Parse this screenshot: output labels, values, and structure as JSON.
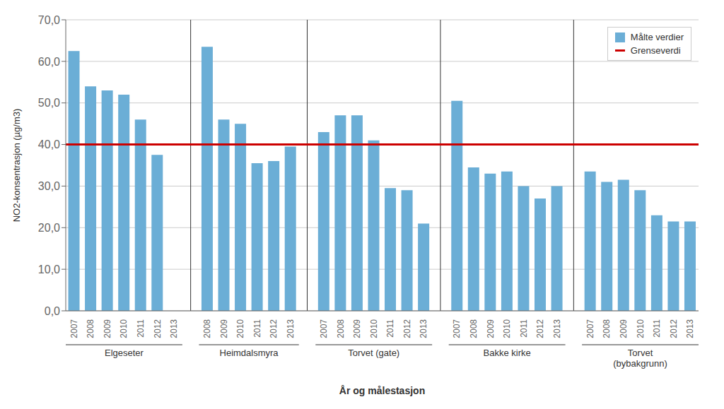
{
  "chart_data": {
    "type": "bar",
    "xlabel": "År og målestasjon",
    "ylabel": "NO2-konsentrasjon (µg/m3)",
    "groups": [
      {
        "name": "Elgeseter",
        "categories": [
          "2007",
          "2008",
          "2009",
          "2010",
          "2011",
          "2012",
          "2013"
        ],
        "values": [
          62.5,
          54.0,
          53.0,
          52.0,
          46.0,
          37.5,
          null
        ]
      },
      {
        "name": "Heimdalsmyra",
        "categories": [
          "2008",
          "2009",
          "2010",
          "2011",
          "2012",
          "2013"
        ],
        "values": [
          63.5,
          46.0,
          45.0,
          35.5,
          36.0,
          39.5
        ]
      },
      {
        "name": "Torvet (gate)",
        "categories": [
          "2007",
          "2008",
          "2009",
          "2010",
          "2011",
          "2012",
          "2013"
        ],
        "values": [
          43.0,
          47.0,
          47.0,
          41.0,
          29.5,
          29.0,
          21.0
        ]
      },
      {
        "name": "Bakke kirke",
        "categories": [
          "2007",
          "2008",
          "2009",
          "2010",
          "2011",
          "2012",
          "2013"
        ],
        "values": [
          50.5,
          34.5,
          33.0,
          33.5,
          30.0,
          27.0,
          30.0
        ]
      },
      {
        "name": "Torvet\n(bybakgrunn)",
        "categories": [
          "2007",
          "2008",
          "2009",
          "2010",
          "2011",
          "2012",
          "2013"
        ],
        "values": [
          33.5,
          31.0,
          31.5,
          29.0,
          23.0,
          21.5,
          21.5
        ]
      }
    ],
    "bar_series": {
      "name": "Målte verdier",
      "color": "#6baed6"
    },
    "reference_line": {
      "name": "Grenseverdi",
      "value": 40.0,
      "color": "#cc0000"
    },
    "ylim": [
      0,
      70
    ],
    "yticks": [
      {
        "value": 0,
        "label": "0,0"
      },
      {
        "value": 10,
        "label": "10,0"
      },
      {
        "value": 20,
        "label": "20,0"
      },
      {
        "value": 30,
        "label": "30,0"
      },
      {
        "value": 40,
        "label": "40,0"
      },
      {
        "value": 50,
        "label": "50,0"
      },
      {
        "value": 60,
        "label": "60,0"
      },
      {
        "value": 70,
        "label": "70,0"
      }
    ],
    "grid": true,
    "legend": "upper right"
  }
}
